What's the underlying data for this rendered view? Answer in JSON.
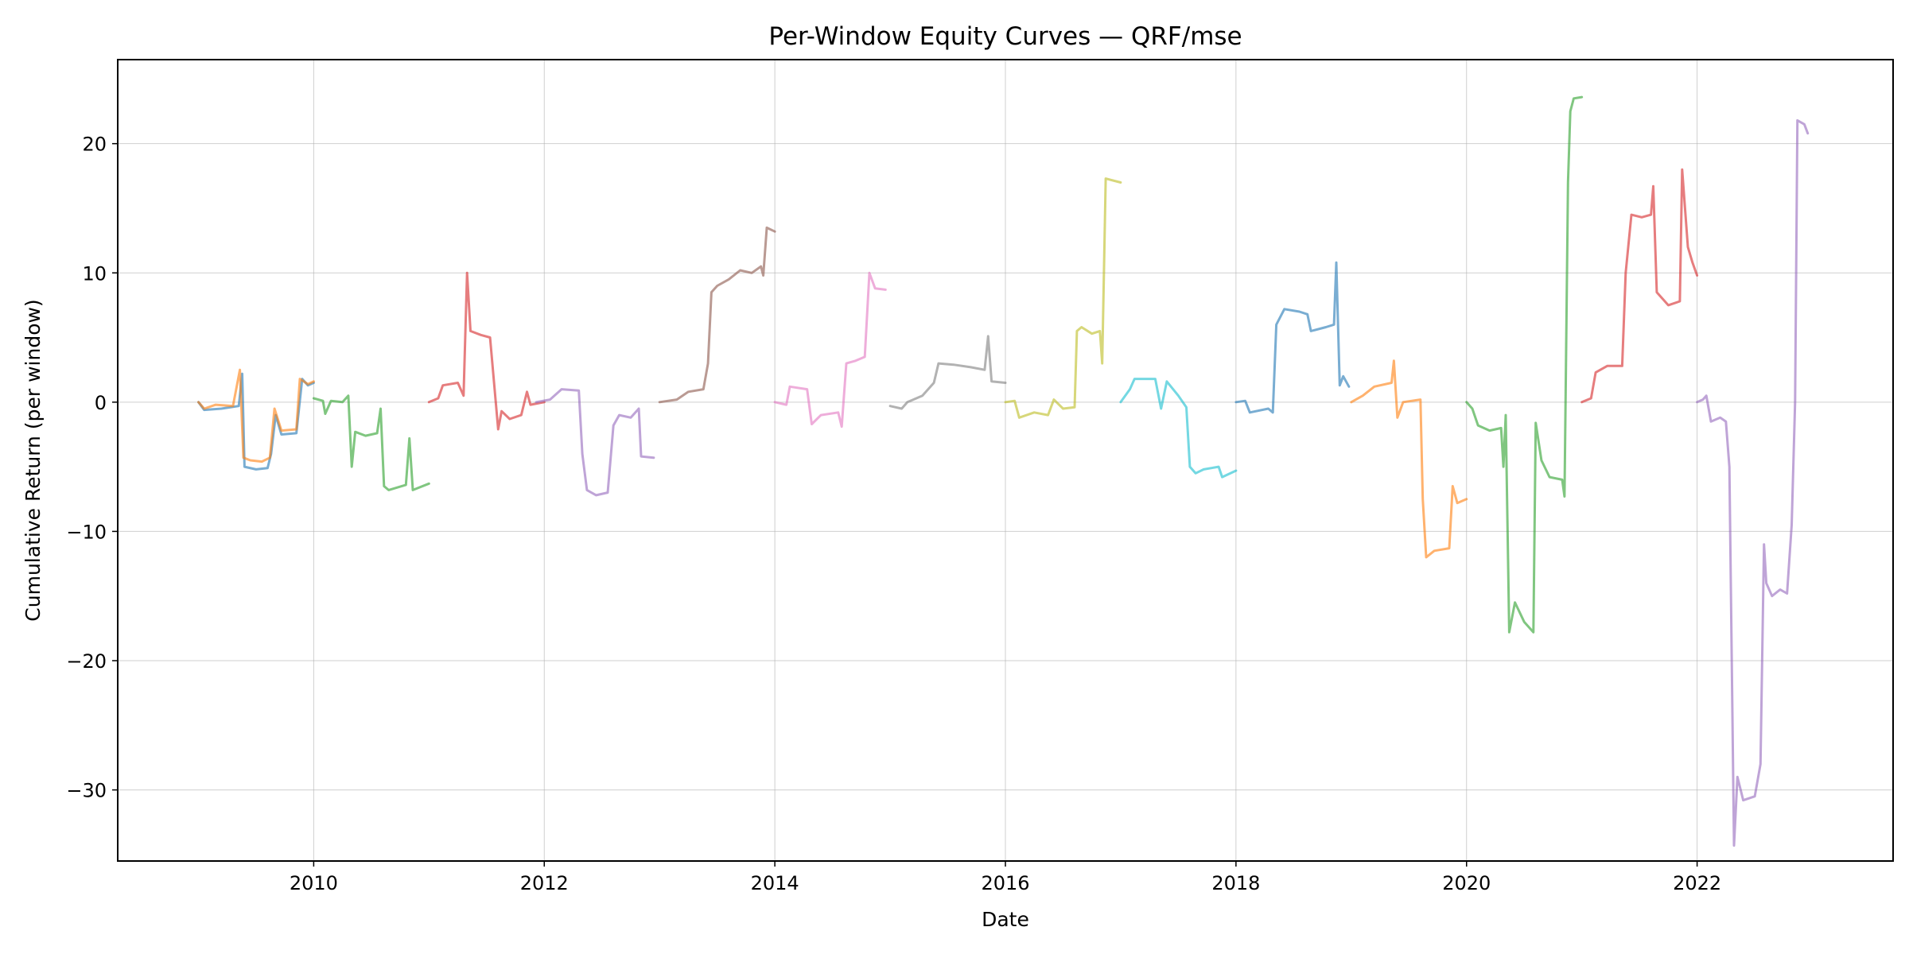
{
  "chart_data": {
    "type": "line",
    "title": "Per-Window Equity Curves — QRF/mse",
    "xlabel": "Date",
    "ylabel": "Cumulative Return (per window)",
    "xlim": [
      2008.3,
      2023.7
    ],
    "ylim": [
      -35.5,
      26.5
    ],
    "x_ticks": [
      2010,
      2012,
      2014,
      2016,
      2018,
      2020,
      2022
    ],
    "x_tick_labels": [
      "2010",
      "2012",
      "2014",
      "2016",
      "2018",
      "2020",
      "2022"
    ],
    "y_ticks": [
      20,
      10,
      0,
      -10,
      -20,
      -30
    ],
    "y_tick_labels": [
      "20",
      "10",
      "0",
      "−10",
      "−20",
      "−30"
    ],
    "grid": true,
    "legend": "none",
    "series": [
      {
        "color": "#1f77b4",
        "points": [
          [
            2009.0,
            0
          ],
          [
            2009.05,
            -0.6
          ],
          [
            2009.2,
            -0.5
          ],
          [
            2009.35,
            -0.3
          ],
          [
            2009.38,
            2.2
          ],
          [
            2009.4,
            -5.0
          ],
          [
            2009.5,
            -5.2
          ],
          [
            2009.6,
            -5.1
          ],
          [
            2009.63,
            -4.0
          ],
          [
            2009.67,
            -1.0
          ],
          [
            2009.72,
            -2.5
          ],
          [
            2009.85,
            -2.4
          ],
          [
            2009.9,
            1.8
          ],
          [
            2009.95,
            1.3
          ],
          [
            2010.0,
            1.5
          ]
        ]
      },
      {
        "color": "#ff7f0e",
        "points": [
          [
            2009.0,
            0
          ],
          [
            2009.05,
            -0.5
          ],
          [
            2009.15,
            -0.2
          ],
          [
            2009.3,
            -0.3
          ],
          [
            2009.36,
            2.5
          ],
          [
            2009.39,
            -4.3
          ],
          [
            2009.45,
            -4.5
          ],
          [
            2009.55,
            -4.6
          ],
          [
            2009.62,
            -4.3
          ],
          [
            2009.66,
            -0.5
          ],
          [
            2009.72,
            -2.2
          ],
          [
            2009.85,
            -2.1
          ],
          [
            2009.88,
            1.8
          ],
          [
            2009.95,
            1.4
          ],
          [
            2010.0,
            1.6
          ]
        ]
      },
      {
        "color": "#2ca02c",
        "points": [
          [
            2010.0,
            0.3
          ],
          [
            2010.08,
            0.1
          ],
          [
            2010.1,
            -0.9
          ],
          [
            2010.15,
            0.1
          ],
          [
            2010.25,
            0
          ],
          [
            2010.3,
            0.5
          ],
          [
            2010.33,
            -5.0
          ],
          [
            2010.36,
            -2.3
          ],
          [
            2010.45,
            -2.6
          ],
          [
            2010.55,
            -2.4
          ],
          [
            2010.58,
            -0.5
          ],
          [
            2010.61,
            -6.5
          ],
          [
            2010.65,
            -6.8
          ],
          [
            2010.8,
            -6.4
          ],
          [
            2010.83,
            -2.8
          ],
          [
            2010.86,
            -6.8
          ],
          [
            2011.0,
            -6.3
          ]
        ]
      },
      {
        "color": "#d62728",
        "points": [
          [
            2011.0,
            0
          ],
          [
            2011.08,
            0.3
          ],
          [
            2011.12,
            1.3
          ],
          [
            2011.25,
            1.5
          ],
          [
            2011.3,
            0.5
          ],
          [
            2011.33,
            10.0
          ],
          [
            2011.36,
            5.5
          ],
          [
            2011.45,
            5.2
          ],
          [
            2011.53,
            5.0
          ],
          [
            2011.6,
            -2.1
          ],
          [
            2011.63,
            -0.7
          ],
          [
            2011.7,
            -1.3
          ],
          [
            2011.8,
            -1.0
          ],
          [
            2011.85,
            0.8
          ],
          [
            2011.88,
            -0.2
          ],
          [
            2012.0,
            0
          ]
        ]
      },
      {
        "color": "#9467bd",
        "points": [
          [
            2011.93,
            0
          ],
          [
            2012.05,
            0.2
          ],
          [
            2012.15,
            1.0
          ],
          [
            2012.3,
            0.9
          ],
          [
            2012.33,
            -4.0
          ],
          [
            2012.37,
            -6.8
          ],
          [
            2012.45,
            -7.2
          ],
          [
            2012.55,
            -7.0
          ],
          [
            2012.6,
            -1.8
          ],
          [
            2012.65,
            -1.0
          ],
          [
            2012.75,
            -1.2
          ],
          [
            2012.82,
            -0.5
          ],
          [
            2012.84,
            -4.2
          ],
          [
            2012.95,
            -4.3
          ]
        ]
      },
      {
        "color": "#8c564b",
        "points": [
          [
            2013.0,
            0
          ],
          [
            2013.15,
            0.2
          ],
          [
            2013.25,
            0.8
          ],
          [
            2013.38,
            1.0
          ],
          [
            2013.42,
            3.0
          ],
          [
            2013.45,
            8.5
          ],
          [
            2013.5,
            9.0
          ],
          [
            2013.6,
            9.5
          ],
          [
            2013.7,
            10.2
          ],
          [
            2013.8,
            10.0
          ],
          [
            2013.88,
            10.5
          ],
          [
            2013.9,
            9.8
          ],
          [
            2013.93,
            13.5
          ],
          [
            2014.0,
            13.2
          ]
        ]
      },
      {
        "color": "#e377c2",
        "points": [
          [
            2014.0,
            0
          ],
          [
            2014.1,
            -0.2
          ],
          [
            2014.13,
            1.2
          ],
          [
            2014.28,
            1.0
          ],
          [
            2014.32,
            -1.7
          ],
          [
            2014.4,
            -1.0
          ],
          [
            2014.55,
            -0.8
          ],
          [
            2014.58,
            -1.9
          ],
          [
            2014.62,
            3.0
          ],
          [
            2014.7,
            3.2
          ],
          [
            2014.78,
            3.5
          ],
          [
            2014.82,
            10.0
          ],
          [
            2014.87,
            8.8
          ],
          [
            2014.96,
            8.7
          ]
        ]
      },
      {
        "color": "#7f7f7f",
        "points": [
          [
            2015.0,
            -0.3
          ],
          [
            2015.1,
            -0.5
          ],
          [
            2015.15,
            0
          ],
          [
            2015.28,
            0.5
          ],
          [
            2015.38,
            1.5
          ],
          [
            2015.42,
            3.0
          ],
          [
            2015.55,
            2.9
          ],
          [
            2015.7,
            2.7
          ],
          [
            2015.82,
            2.5
          ],
          [
            2015.85,
            5.1
          ],
          [
            2015.88,
            1.6
          ],
          [
            2016.0,
            1.5
          ]
        ]
      },
      {
        "color": "#bcbd22",
        "points": [
          [
            2016.0,
            0
          ],
          [
            2016.08,
            0.1
          ],
          [
            2016.12,
            -1.2
          ],
          [
            2016.25,
            -0.8
          ],
          [
            2016.37,
            -1.0
          ],
          [
            2016.42,
            0.2
          ],
          [
            2016.5,
            -0.5
          ],
          [
            2016.6,
            -0.4
          ],
          [
            2016.62,
            5.5
          ],
          [
            2016.66,
            5.8
          ],
          [
            2016.75,
            5.3
          ],
          [
            2016.82,
            5.5
          ],
          [
            2016.84,
            3.0
          ],
          [
            2016.87,
            17.3
          ],
          [
            2017.0,
            17.0
          ]
        ]
      },
      {
        "color": "#17becf",
        "points": [
          [
            2017.0,
            0
          ],
          [
            2017.08,
            1.0
          ],
          [
            2017.12,
            1.8
          ],
          [
            2017.3,
            1.8
          ],
          [
            2017.35,
            -0.5
          ],
          [
            2017.4,
            1.6
          ],
          [
            2017.5,
            0.5
          ],
          [
            2017.57,
            -0.4
          ],
          [
            2017.6,
            -5.0
          ],
          [
            2017.65,
            -5.5
          ],
          [
            2017.72,
            -5.2
          ],
          [
            2017.85,
            -5.0
          ],
          [
            2017.88,
            -5.8
          ],
          [
            2018.0,
            -5.3
          ]
        ]
      },
      {
        "color": "#1f77b4",
        "points": [
          [
            2018.0,
            0
          ],
          [
            2018.08,
            0.1
          ],
          [
            2018.12,
            -0.8
          ],
          [
            2018.28,
            -0.5
          ],
          [
            2018.32,
            -0.8
          ],
          [
            2018.35,
            6.0
          ],
          [
            2018.42,
            7.2
          ],
          [
            2018.55,
            7.0
          ],
          [
            2018.62,
            6.8
          ],
          [
            2018.65,
            5.5
          ],
          [
            2018.78,
            5.8
          ],
          [
            2018.85,
            6.0
          ],
          [
            2018.87,
            10.8
          ],
          [
            2018.9,
            1.3
          ],
          [
            2018.93,
            2.0
          ],
          [
            2018.98,
            1.2
          ]
        ]
      },
      {
        "color": "#ff7f0e",
        "points": [
          [
            2019.0,
            0
          ],
          [
            2019.1,
            0.5
          ],
          [
            2019.2,
            1.2
          ],
          [
            2019.35,
            1.5
          ],
          [
            2019.37,
            3.2
          ],
          [
            2019.4,
            -1.2
          ],
          [
            2019.45,
            0
          ],
          [
            2019.6,
            0.2
          ],
          [
            2019.62,
            -7.5
          ],
          [
            2019.65,
            -12.0
          ],
          [
            2019.72,
            -11.5
          ],
          [
            2019.85,
            -11.3
          ],
          [
            2019.88,
            -6.5
          ],
          [
            2019.92,
            -7.8
          ],
          [
            2020.0,
            -7.5
          ]
        ]
      },
      {
        "color": "#2ca02c",
        "points": [
          [
            2020.0,
            0
          ],
          [
            2020.05,
            -0.5
          ],
          [
            2020.1,
            -1.8
          ],
          [
            2020.2,
            -2.2
          ],
          [
            2020.3,
            -2.0
          ],
          [
            2020.32,
            -5.0
          ],
          [
            2020.34,
            -1.0
          ],
          [
            2020.37,
            -17.8
          ],
          [
            2020.42,
            -15.5
          ],
          [
            2020.5,
            -17.0
          ],
          [
            2020.58,
            -17.8
          ],
          [
            2020.6,
            -1.6
          ],
          [
            2020.65,
            -4.5
          ],
          [
            2020.72,
            -5.8
          ],
          [
            2020.83,
            -6.0
          ],
          [
            2020.85,
            -7.3
          ],
          [
            2020.88,
            17.0
          ],
          [
            2020.9,
            22.5
          ],
          [
            2020.93,
            23.5
          ],
          [
            2021.0,
            23.6
          ]
        ]
      },
      {
        "color": "#d62728",
        "points": [
          [
            2021.0,
            0
          ],
          [
            2021.08,
            0.3
          ],
          [
            2021.12,
            2.3
          ],
          [
            2021.22,
            2.8
          ],
          [
            2021.35,
            2.8
          ],
          [
            2021.38,
            10.0
          ],
          [
            2021.43,
            14.5
          ],
          [
            2021.52,
            14.3
          ],
          [
            2021.6,
            14.5
          ],
          [
            2021.62,
            16.7
          ],
          [
            2021.65,
            8.5
          ],
          [
            2021.75,
            7.5
          ],
          [
            2021.85,
            7.8
          ],
          [
            2021.87,
            18.0
          ],
          [
            2021.92,
            12.0
          ],
          [
            2021.96,
            10.8
          ],
          [
            2022.0,
            9.8
          ]
        ]
      },
      {
        "color": "#9467bd",
        "points": [
          [
            2022.0,
            0
          ],
          [
            2022.05,
            0.2
          ],
          [
            2022.08,
            0.5
          ],
          [
            2022.12,
            -1.5
          ],
          [
            2022.2,
            -1.2
          ],
          [
            2022.25,
            -1.5
          ],
          [
            2022.28,
            -5.0
          ],
          [
            2022.32,
            -34.3
          ],
          [
            2022.35,
            -29.0
          ],
          [
            2022.4,
            -30.8
          ],
          [
            2022.5,
            -30.5
          ],
          [
            2022.55,
            -28.0
          ],
          [
            2022.58,
            -11.0
          ],
          [
            2022.6,
            -14.0
          ],
          [
            2022.65,
            -15.0
          ],
          [
            2022.72,
            -14.5
          ],
          [
            2022.78,
            -14.8
          ],
          [
            2022.82,
            -9.5
          ],
          [
            2022.85,
            0
          ],
          [
            2022.87,
            21.8
          ],
          [
            2022.93,
            21.5
          ],
          [
            2022.96,
            20.8
          ]
        ]
      }
    ]
  }
}
